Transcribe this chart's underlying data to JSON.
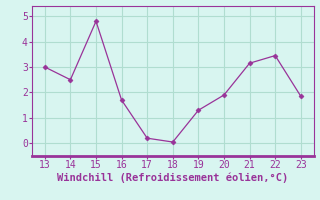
{
  "x": [
    13,
    14,
    15,
    16,
    17,
    18,
    19,
    20,
    21,
    22,
    23
  ],
  "y": [
    3.0,
    2.5,
    4.8,
    1.7,
    0.2,
    0.05,
    1.3,
    1.9,
    3.15,
    3.45,
    1.85
  ],
  "line_color": "#993399",
  "marker": "D",
  "marker_size": 2.5,
  "background_color": "#d8f5f0",
  "grid_color": "#b0ddd0",
  "xlabel": "Windchill (Refroidissement éolien,°C)",
  "xlabel_color": "#993399",
  "xlabel_fontsize": 7.5,
  "tick_color": "#993399",
  "tick_fontsize": 7,
  "xlim": [
    12.5,
    23.5
  ],
  "ylim": [
    -0.5,
    5.4
  ],
  "xticks": [
    13,
    14,
    15,
    16,
    17,
    18,
    19,
    20,
    21,
    22,
    23
  ],
  "yticks": [
    0,
    1,
    2,
    3,
    4,
    5
  ],
  "grid_on": true,
  "spine_color": "#993399",
  "bottom_spine_linewidth": 2.0
}
